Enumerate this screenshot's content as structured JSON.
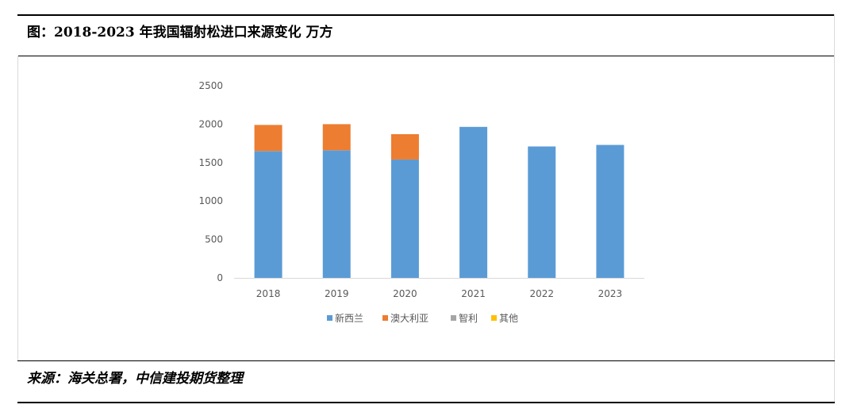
{
  "figure": {
    "title": "图：2018-2023 年我国辐射松进口来源变化 万方",
    "source": "来源：海关总署，中信建投期货整理"
  },
  "chart_data": {
    "type": "bar",
    "stacked": true,
    "categories": [
      "2018",
      "2019",
      "2020",
      "2021",
      "2022",
      "2023"
    ],
    "series": [
      {
        "name": "新西兰",
        "color": "#5B9BD5",
        "values": [
          1650,
          1660,
          1540,
          1965,
          1710,
          1730
        ]
      },
      {
        "name": "澳大利亚",
        "color": "#ED7D31",
        "values": [
          340,
          340,
          330,
          0,
          0,
          0
        ]
      },
      {
        "name": "智利",
        "color": "#A5A5A5",
        "values": [
          0,
          0,
          0,
          0,
          0,
          0
        ]
      },
      {
        "name": "其他",
        "color": "#FFC000",
        "values": [
          0,
          0,
          0,
          0,
          0,
          0
        ]
      }
    ],
    "ylim": [
      0,
      2500
    ],
    "yticks": [
      "0",
      "500",
      "1000",
      "1500",
      "2000",
      "2500"
    ],
    "grid": false,
    "legend_position": "bottom"
  }
}
